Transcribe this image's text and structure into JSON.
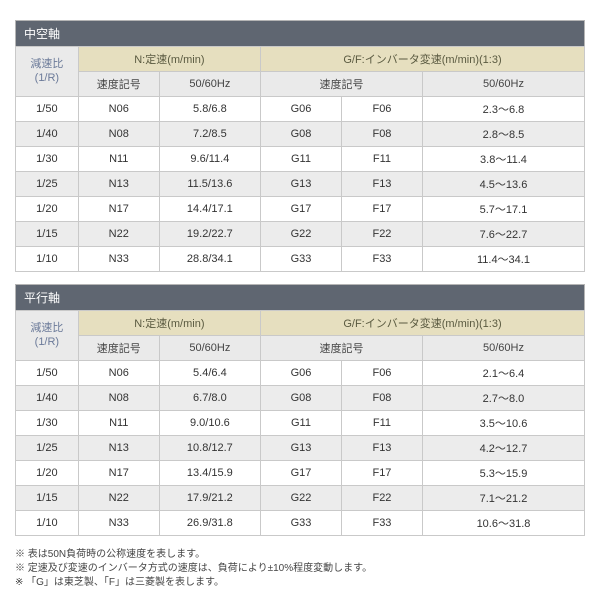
{
  "sections": [
    {
      "title": "中空軸",
      "header": {
        "ratio": "減速比\n(1/R)",
        "group_n": "N:定速(m/min)",
        "group_gf": "G/F:インバータ変速(m/min)(1:3)",
        "sub_n1": "速度記号",
        "sub_n2": "50/60Hz",
        "sub_gf1": "速度記号",
        "sub_gf2": "50/60Hz"
      },
      "rows": [
        {
          "ratio": "1/50",
          "n1": "N06",
          "n2": "5.8/6.8",
          "g1": "G06",
          "g2": "F06",
          "g3": "2.3～6.8"
        },
        {
          "ratio": "1/40",
          "n1": "N08",
          "n2": "7.2/8.5",
          "g1": "G08",
          "g2": "F08",
          "g3": "2.8～8.5"
        },
        {
          "ratio": "1/30",
          "n1": "N11",
          "n2": "9.6/11.4",
          "g1": "G11",
          "g2": "F11",
          "g3": "3.8～11.4"
        },
        {
          "ratio": "1/25",
          "n1": "N13",
          "n2": "11.5/13.6",
          "g1": "G13",
          "g2": "F13",
          "g3": "4.5～13.6"
        },
        {
          "ratio": "1/20",
          "n1": "N17",
          "n2": "14.4/17.1",
          "g1": "G17",
          "g2": "F17",
          "g3": "5.7～17.1"
        },
        {
          "ratio": "1/15",
          "n1": "N22",
          "n2": "19.2/22.7",
          "g1": "G22",
          "g2": "F22",
          "g3": "7.6～22.7"
        },
        {
          "ratio": "1/10",
          "n1": "N33",
          "n2": "28.8/34.1",
          "g1": "G33",
          "g2": "F33",
          "g3": "11.4～34.1"
        }
      ]
    },
    {
      "title": "平行軸",
      "header": {
        "ratio": "減速比\n(1/R)",
        "group_n": "N:定速(m/min)",
        "group_gf": "G/F:インバータ変速(m/min)(1:3)",
        "sub_n1": "速度記号",
        "sub_n2": "50/60Hz",
        "sub_gf1": "速度記号",
        "sub_gf2": "50/60Hz"
      },
      "rows": [
        {
          "ratio": "1/50",
          "n1": "N06",
          "n2": "5.4/6.4",
          "g1": "G06",
          "g2": "F06",
          "g3": "2.1～6.4"
        },
        {
          "ratio": "1/40",
          "n1": "N08",
          "n2": "6.7/8.0",
          "g1": "G08",
          "g2": "F08",
          "g3": "2.7～8.0"
        },
        {
          "ratio": "1/30",
          "n1": "N11",
          "n2": "9.0/10.6",
          "g1": "G11",
          "g2": "F11",
          "g3": "3.5～10.6"
        },
        {
          "ratio": "1/25",
          "n1": "N13",
          "n2": "10.8/12.7",
          "g1": "G13",
          "g2": "F13",
          "g3": "4.2～12.7"
        },
        {
          "ratio": "1/20",
          "n1": "N17",
          "n2": "13.4/15.9",
          "g1": "G17",
          "g2": "F17",
          "g3": "5.3～15.9"
        },
        {
          "ratio": "1/15",
          "n1": "N22",
          "n2": "17.9/21.2",
          "g1": "G22",
          "g2": "F22",
          "g3": "7.1～21.2"
        },
        {
          "ratio": "1/10",
          "n1": "N33",
          "n2": "26.9/31.8",
          "g1": "G33",
          "g2": "F33",
          "g3": "10.6～31.8"
        }
      ]
    }
  ],
  "notes": [
    "※ 表は50N負荷時の公称速度を表します。",
    "※ 定速及び変速のインバータ方式の速度は、負荷により±10%程度変動します。",
    "※ 「G」は東芝製、「F」は三菱製を表します。"
  ]
}
